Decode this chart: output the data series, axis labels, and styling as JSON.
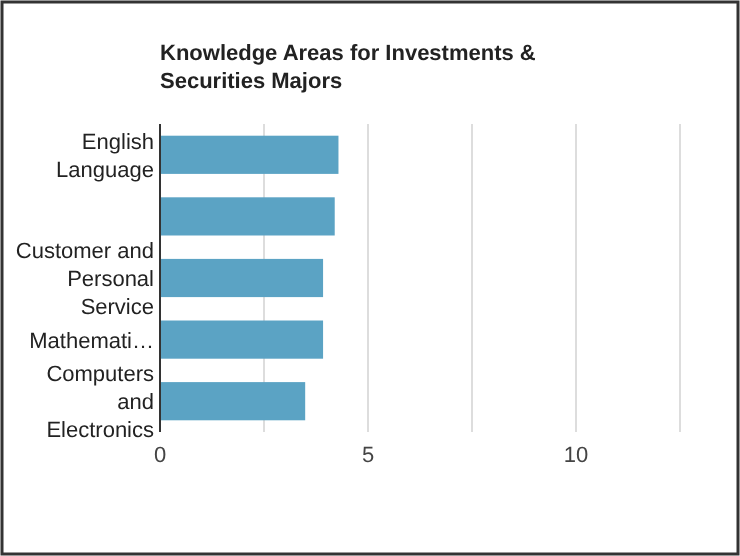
{
  "chart_data": {
    "type": "bar",
    "orientation": "horizontal",
    "title": "Knowledge Areas for Investments & Securities Majors",
    "categories": [
      "English Language",
      null,
      "Customer and Personal Service",
      "Mathemati…",
      "Computers and Electronics"
    ],
    "values": [
      4.29,
      4.2,
      3.92,
      3.92,
      3.49
    ],
    "color": "#5ba3c4",
    "xlim": [
      0,
      12.5
    ],
    "xticks": [
      0,
      {
        "value": 2.5,
        "label": null
      },
      5,
      {
        "value": 7.5,
        "label": null
      },
      10,
      {
        "value": 12.5,
        "label": null
      }
    ],
    "grid": "x"
  }
}
